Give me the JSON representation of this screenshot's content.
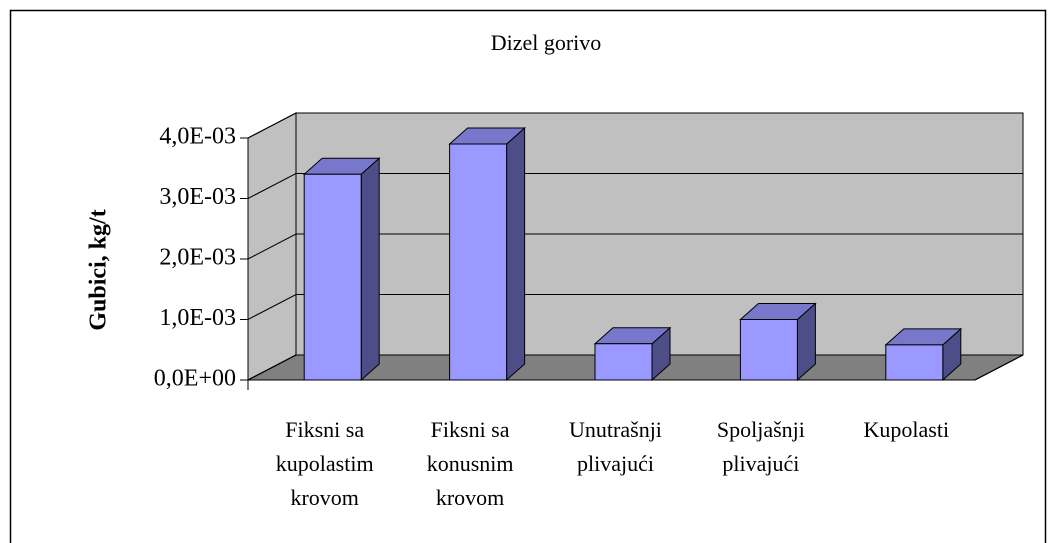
{
  "chart_data": {
    "type": "bar3d",
    "title": "Dizel gorivo",
    "ylabel": "Gubici, kg/t",
    "categories": [
      "Fiksni sa kupolastim krovom",
      "Fiksni sa konusnim krovom",
      "Unutrašnji plivajući",
      "Spoljašnji plivajući",
      "Kupolasti"
    ],
    "values": [
      0.0034,
      0.0039,
      0.0006,
      0.001,
      0.00058
    ],
    "color": "#9999ff",
    "ylim": [
      0,
      0.004
    ],
    "yticks": [
      {
        "value": 0,
        "label": "0,0E+00"
      },
      {
        "value": 0.001,
        "label": "1,0E-03"
      },
      {
        "value": 0.002,
        "label": "2,0E-03"
      },
      {
        "value": 0.003,
        "label": "3,0E-03"
      },
      {
        "value": 0.004,
        "label": "4,0E-03"
      }
    ],
    "grid": true
  }
}
